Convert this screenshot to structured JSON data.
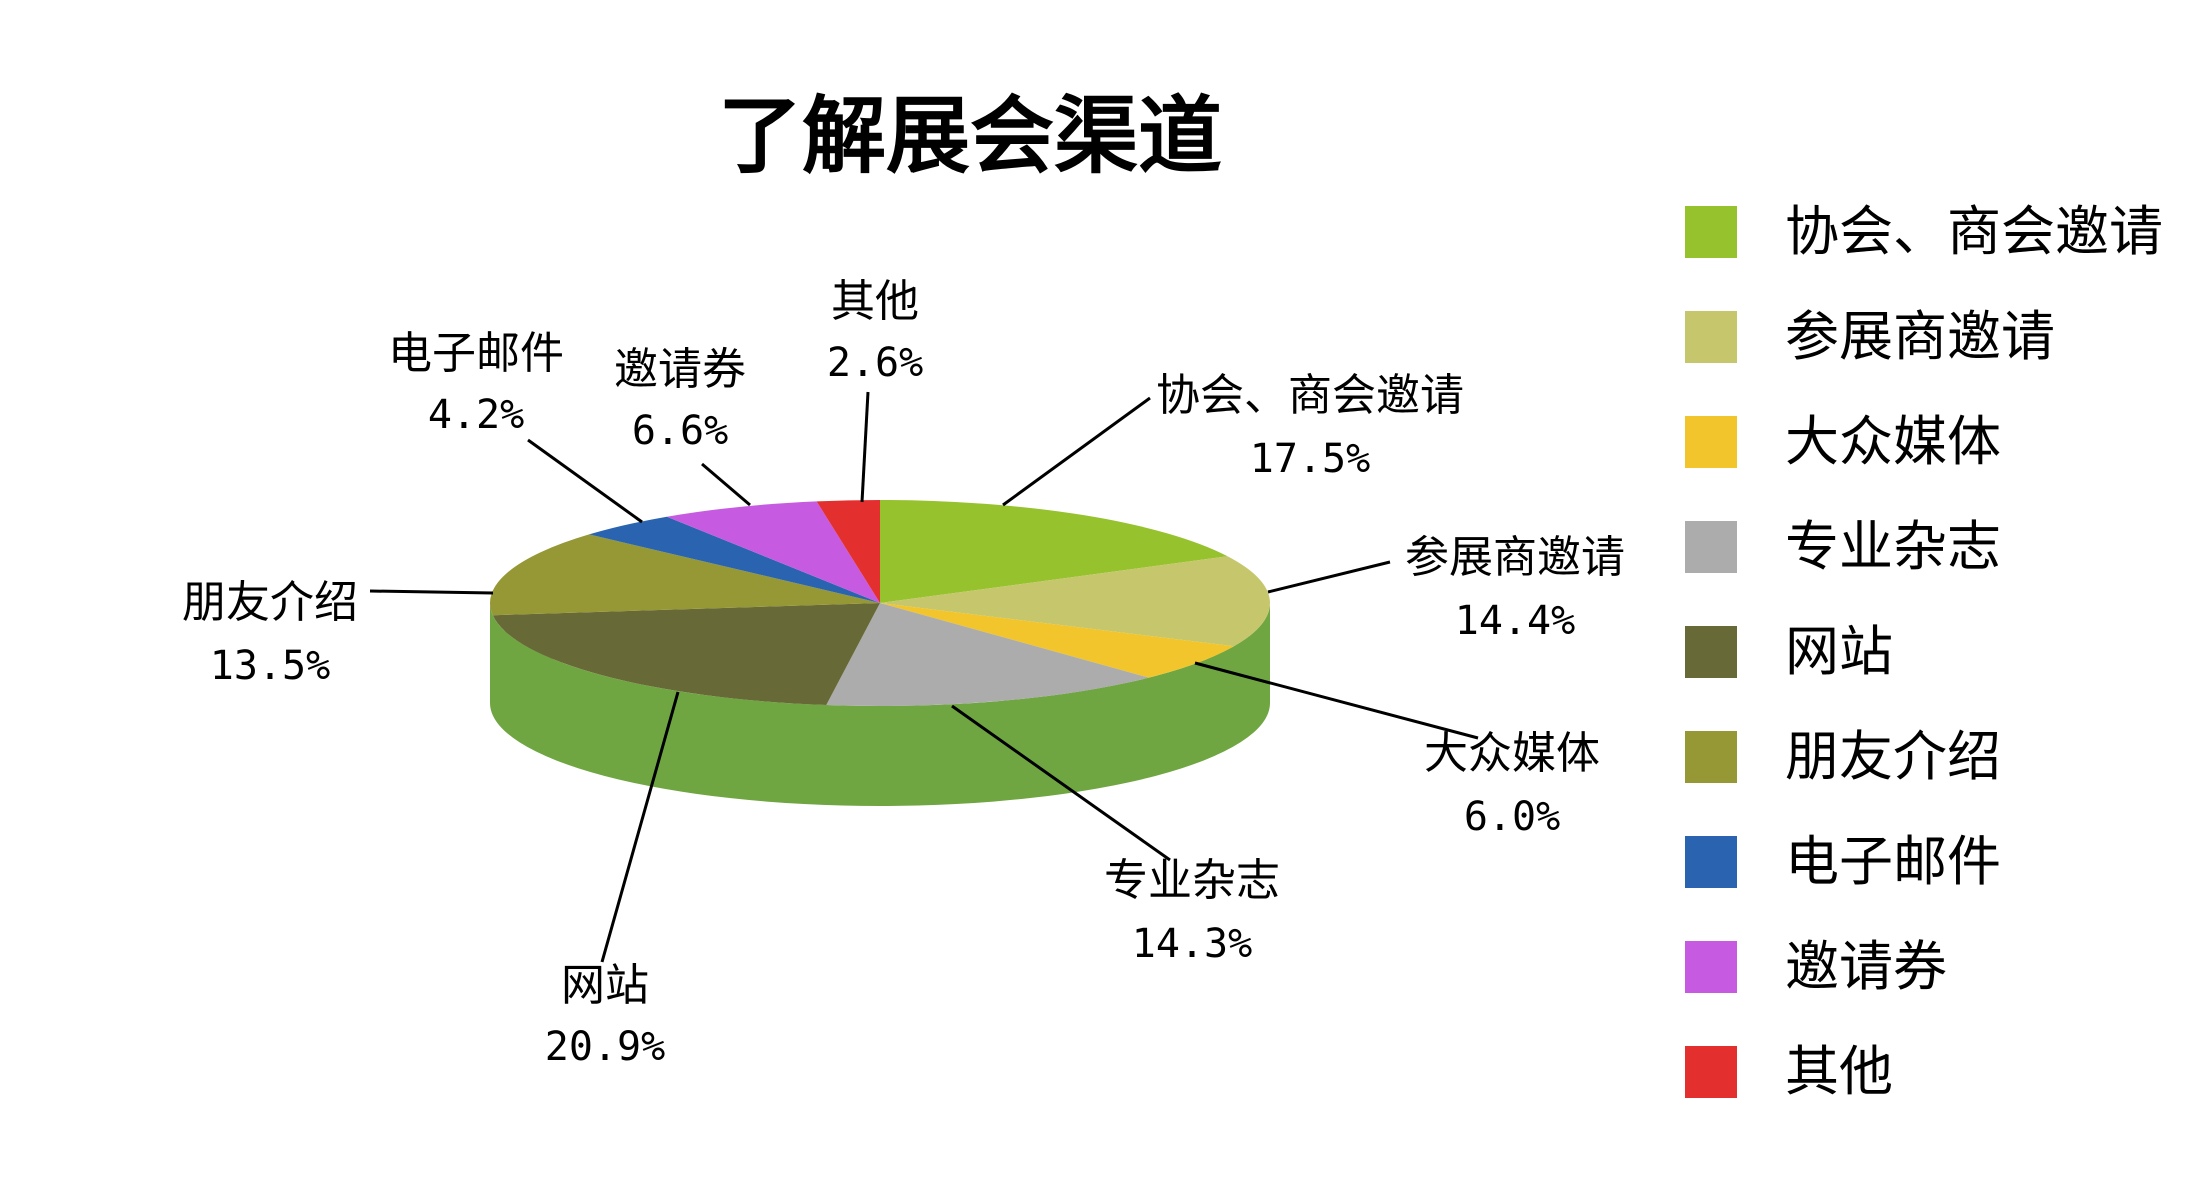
{
  "chart_data": {
    "type": "pie",
    "title": "了解展会渠道",
    "legend_position": "right",
    "slices": [
      {
        "label": "协会、商会邀请",
        "value": 17.5,
        "display": "17.5%",
        "color": "#96c22e"
      },
      {
        "label": "参展商邀请",
        "value": 14.4,
        "display": "14.4%",
        "color": "#c6c76c"
      },
      {
        "label": "大众媒体",
        "value": 6.0,
        "display": "6.0%",
        "color": "#f1c52b"
      },
      {
        "label": "专业杂志",
        "value": 14.3,
        "display": "14.3%",
        "color": "#acacac"
      },
      {
        "label": "网站",
        "value": 20.9,
        "display": "20.9%",
        "color": "#676a36"
      },
      {
        "label": "朋友介绍",
        "value": 13.5,
        "display": "13.5%",
        "color": "#969735"
      },
      {
        "label": "电子邮件",
        "value": 4.2,
        "display": "4.2%",
        "color": "#2a64b0"
      },
      {
        "label": "邀请券",
        "value": 6.6,
        "display": "6.6%",
        "color": "#c65be1"
      },
      {
        "label": "其他",
        "value": 2.6,
        "display": "2.6%",
        "color": "#e3302f"
      }
    ],
    "pie_side_color": "#6fa641"
  }
}
